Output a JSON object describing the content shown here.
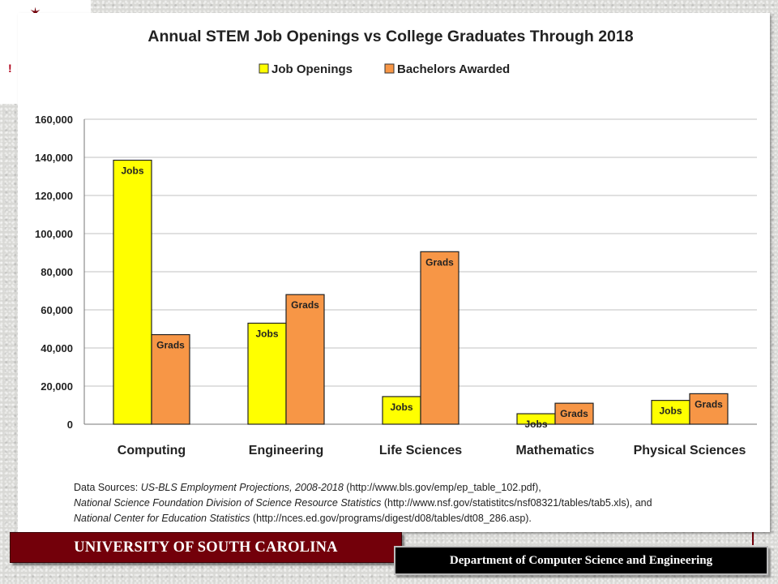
{
  "slide": {
    "banner_left": "UNIVERSITY OF SOUTH CAROLINA",
    "banner_right": "Department of Computer Science and Engineering"
  },
  "colors": {
    "jobs": "#ffff00",
    "grads": "#f79646",
    "grid": "#c0c0c0",
    "maroon": "#73000a"
  },
  "chart_data": {
    "type": "bar",
    "title": "Annual STEM Job Openings vs College Graduates Through 2018",
    "categories": [
      "Computing",
      "Engineering",
      "Life Sciences",
      "Mathematics",
      "Physical Sciences"
    ],
    "series": [
      {
        "name": "Job Openings",
        "values": [
          138500,
          53000,
          14500,
          5500,
          12500
        ],
        "bar_label": "Jobs",
        "color": "#ffff00"
      },
      {
        "name": "Bachelors Awarded",
        "values": [
          47000,
          68000,
          90500,
          11000,
          16000
        ],
        "bar_label": "Grads",
        "color": "#f79646"
      }
    ],
    "ylim": [
      0,
      160000
    ],
    "yticks": [
      0,
      20000,
      40000,
      60000,
      80000,
      100000,
      120000,
      140000,
      160000
    ],
    "ytick_labels": [
      "0",
      "20,000",
      "40,000",
      "60,000",
      "80,000",
      "100,000",
      "120,000",
      "140,000",
      "160,000"
    ],
    "grid": true,
    "legend_position": "top",
    "sources": [
      [
        {
          "t": "Data Sources: ",
          "i": false
        },
        {
          "t": "US-BLS Employment Projections, 2008-2018",
          "i": true
        },
        {
          "t": " (http://www.bls.gov/emp/ep_table_102.pdf),",
          "i": false
        }
      ],
      [
        {
          "t": "National Science Foundation Division of Science Resource Statistics",
          "i": true
        },
        {
          "t": " (http://www.nsf.gov/statistitcs/nsf08321/tables/tab5.xls), and",
          "i": false
        }
      ],
      [
        {
          "t": "National Center for Education Statistics",
          "i": true
        },
        {
          "t": " (http://nces.ed.gov/programs/digest/d08/tables/dt08_286.asp).",
          "i": false
        }
      ]
    ]
  }
}
